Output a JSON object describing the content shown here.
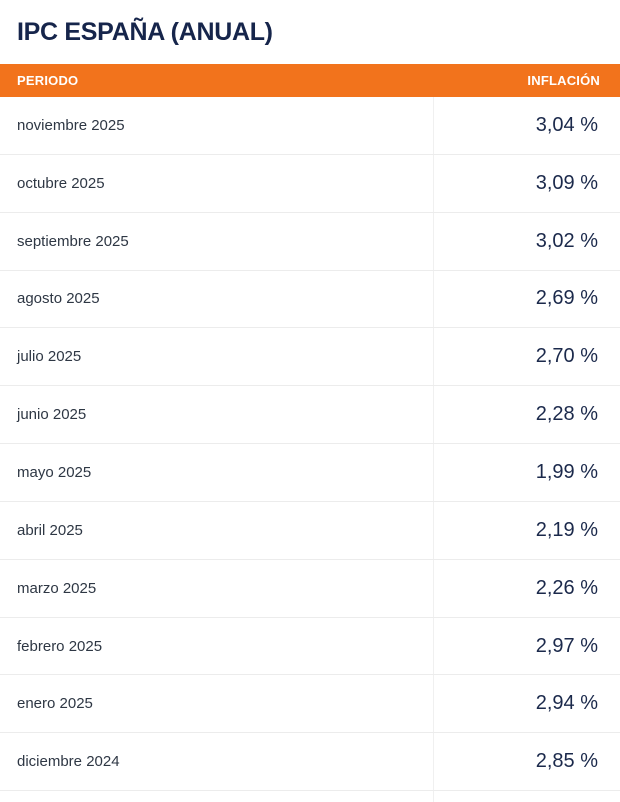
{
  "title": "IPC ESPAÑA (ANUAL)",
  "table": {
    "headers": {
      "period": "PERIODO",
      "inflation": "INFLACIÓN"
    },
    "rows": [
      {
        "period": "noviembre 2025",
        "value": "3,04 %"
      },
      {
        "period": "octubre 2025",
        "value": "3,09 %"
      },
      {
        "period": "septiembre 2025",
        "value": "3,02 %"
      },
      {
        "period": "agosto 2025",
        "value": "2,69 %"
      },
      {
        "period": "julio 2025",
        "value": "2,70 %"
      },
      {
        "period": "junio 2025",
        "value": "2,28 %"
      },
      {
        "period": "mayo 2025",
        "value": "1,99 %"
      },
      {
        "period": "abril 2025",
        "value": "2,19 %"
      },
      {
        "period": "marzo 2025",
        "value": "2,26 %"
      },
      {
        "period": "febrero 2025",
        "value": "2,97 %"
      },
      {
        "period": "enero 2025",
        "value": "2,94 %"
      },
      {
        "period": "diciembre 2024",
        "value": "2,85 %"
      }
    ]
  },
  "colors": {
    "accent_orange": "#f2731c",
    "title_navy": "#16254b",
    "value_navy": "#1b294b",
    "period_text": "#2e3744",
    "row_border": "#ececec",
    "column_divider": "#f0f0f0"
  }
}
